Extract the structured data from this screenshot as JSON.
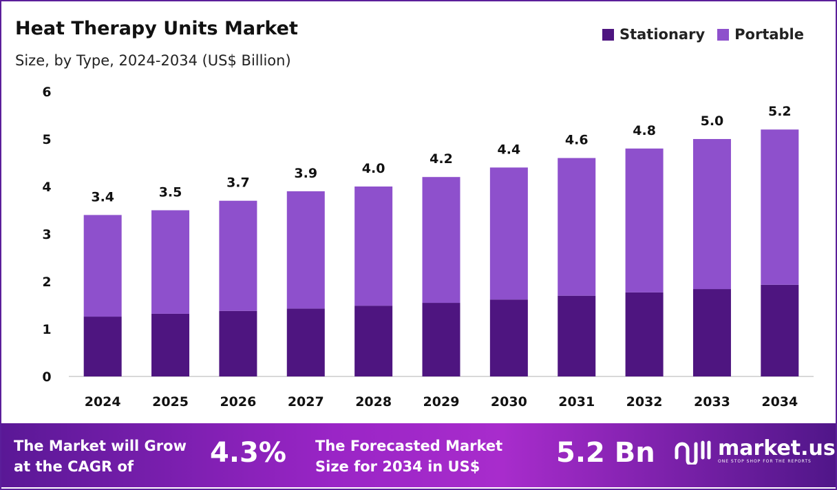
{
  "chart_data": {
    "type": "bar",
    "stacked": true,
    "title": "Heat Therapy Units Market",
    "subtitle": "Size, by Type, 2024-2034 (US$ Billion)",
    "categories": [
      "2024",
      "2025",
      "2026",
      "2027",
      "2028",
      "2029",
      "2030",
      "2031",
      "2032",
      "2033",
      "2034"
    ],
    "series": [
      {
        "name": "Stationary",
        "color": "#4e1580",
        "values": [
          1.26,
          1.32,
          1.38,
          1.43,
          1.49,
          1.55,
          1.62,
          1.7,
          1.77,
          1.84,
          1.93
        ]
      },
      {
        "name": "Portable",
        "color": "#8e50cc",
        "values": [
          2.14,
          2.18,
          2.32,
          2.47,
          2.51,
          2.65,
          2.78,
          2.9,
          3.03,
          3.16,
          3.27
        ]
      }
    ],
    "totals": [
      "3.4",
      "3.5",
      "3.7",
      "3.9",
      "4.0",
      "4.2",
      "4.4",
      "4.6",
      "4.8",
      "5.0",
      "5.2"
    ],
    "yticks": [
      "0",
      "1",
      "2",
      "3",
      "4",
      "5",
      "6"
    ],
    "ylim": [
      0,
      6
    ],
    "grid": false,
    "legend_position": "top-right"
  },
  "footer": {
    "cagr_text_1": "The Market will Grow",
    "cagr_text_2": "at the CAGR of",
    "cagr_value": "4.3%",
    "forecast_text_1": "The Forecasted Market",
    "forecast_text_2": "Size for 2034 in US$",
    "forecast_value": "5.2 Bn",
    "brand": "market.us",
    "brand_tagline": "ONE STOP SHOP FOR THE REPORTS"
  }
}
